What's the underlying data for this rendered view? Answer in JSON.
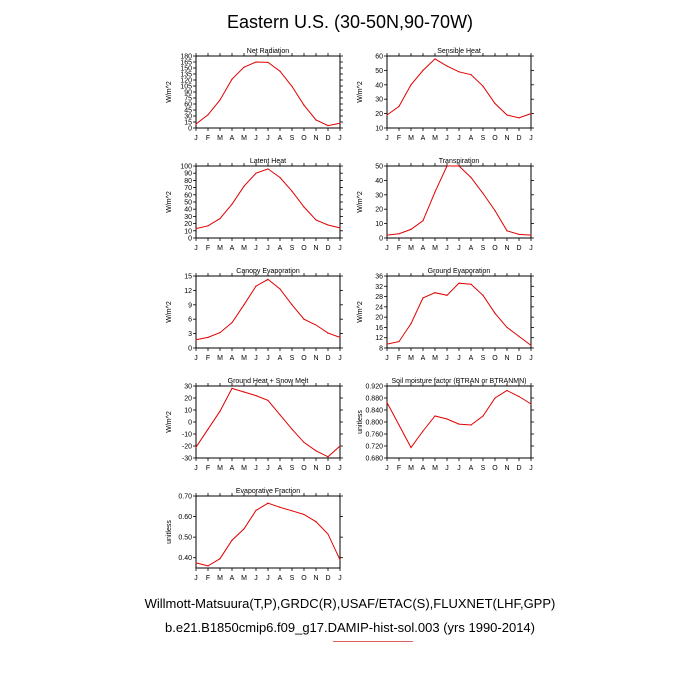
{
  "title": "Eastern U.S. (30-50N,90-70W)",
  "footer": {
    "line1": "Willmott-Matsuura(T,P),GRDC(R),USAF/ETAC(S),FLUXNET(LHF,GPP)",
    "line2": "b.e21.B1850cmip6.f09_g17.DAMIP-hist-sol.003 (yrs 1990-2014)"
  },
  "colors": {
    "series": "#e00000",
    "axis": "#000000"
  },
  "chart_data": [
    {
      "type": "line",
      "title": "Net Radiation",
      "ylabel": "W/m^2",
      "x": [
        "J",
        "F",
        "M",
        "A",
        "M",
        "J",
        "J",
        "A",
        "S",
        "O",
        "N",
        "D",
        "J"
      ],
      "y": [
        10,
        33,
        70,
        122,
        152,
        165,
        164,
        142,
        104,
        57,
        20,
        6,
        12
      ],
      "ylim": [
        0,
        180
      ],
      "yticks": [
        "0",
        "15",
        "30",
        "45",
        "60",
        "75",
        "90",
        "105",
        "120",
        "135",
        "150",
        "165",
        "180"
      ]
    },
    {
      "type": "line",
      "title": "Sensible Heat",
      "ylabel": "W/m^2",
      "x": [
        "J",
        "F",
        "M",
        "A",
        "M",
        "J",
        "J",
        "A",
        "S",
        "O",
        "N",
        "D",
        "J"
      ],
      "y": [
        19,
        25,
        40,
        50,
        58,
        53,
        49,
        47,
        39,
        27,
        19,
        17,
        20
      ],
      "ylim": [
        10,
        60
      ],
      "yticks": [
        "10",
        "20",
        "30",
        "40",
        "50",
        "60"
      ]
    },
    {
      "type": "line",
      "title": "Latent Heat",
      "ylabel": "W/m^2",
      "x": [
        "J",
        "F",
        "M",
        "A",
        "M",
        "J",
        "J",
        "A",
        "S",
        "O",
        "N",
        "D",
        "J"
      ],
      "y": [
        13,
        17,
        27,
        47,
        72,
        90,
        96,
        84,
        65,
        43,
        25,
        18,
        14
      ],
      "ylim": [
        0,
        100
      ],
      "yticks": [
        "0",
        "10",
        "20",
        "30",
        "40",
        "50",
        "60",
        "70",
        "80",
        "90",
        "100"
      ]
    },
    {
      "type": "line",
      "title": "Transpiration",
      "ylabel": "W/m^2",
      "x": [
        "J",
        "F",
        "M",
        "A",
        "M",
        "J",
        "J",
        "A",
        "S",
        "O",
        "N",
        "D",
        "J"
      ],
      "y": [
        2,
        3,
        6,
        12,
        32,
        50,
        50,
        42,
        31,
        19,
        5,
        2.5,
        2
      ],
      "ylim": [
        0,
        50
      ],
      "yticks": [
        "0",
        "10",
        "20",
        "30",
        "40",
        "50"
      ]
    },
    {
      "type": "line",
      "title": "Canopy Evaporation",
      "ylabel": "W/m^2",
      "x": [
        "J",
        "F",
        "M",
        "A",
        "M",
        "J",
        "J",
        "A",
        "S",
        "O",
        "N",
        "D",
        "J"
      ],
      "y": [
        1.7,
        2.2,
        3.2,
        5.3,
        9.0,
        12.9,
        14.3,
        12.3,
        9.0,
        6.0,
        4.8,
        3.1,
        2.2
      ],
      "ylim": [
        0,
        15
      ],
      "yticks": [
        "0",
        "3",
        "6",
        "9",
        "12",
        "15"
      ]
    },
    {
      "type": "line",
      "title": "Ground Evaporation",
      "ylabel": "W/m^2",
      "x": [
        "J",
        "F",
        "M",
        "A",
        "M",
        "J",
        "J",
        "A",
        "S",
        "O",
        "N",
        "D",
        "J"
      ],
      "y": [
        9.5,
        10.5,
        17.5,
        27.5,
        29.5,
        28.5,
        33.2,
        32.8,
        28.5,
        21.5,
        16.0,
        12.5,
        9.0
      ],
      "ylim": [
        8,
        36
      ],
      "yticks": [
        "8",
        "12",
        "16",
        "20",
        "24",
        "28",
        "32",
        "36"
      ]
    },
    {
      "type": "line",
      "title": "Ground Heat + Snow Melt",
      "ylabel": "W/m^2",
      "x": [
        "J",
        "F",
        "M",
        "A",
        "M",
        "J",
        "J",
        "A",
        "S",
        "O",
        "N",
        "D",
        "J"
      ],
      "y": [
        -21,
        -6,
        9,
        28,
        25,
        22,
        18,
        6,
        -6,
        -17,
        -24,
        -29,
        -20
      ],
      "ylim": [
        -30,
        30
      ],
      "yticks": [
        "-30",
        "-20",
        "-10",
        "0",
        "10",
        "20",
        "30"
      ]
    },
    {
      "type": "line",
      "title": "Soil moisture factor (BTRAN or BTRANMN)",
      "ylabel": "unitless",
      "x": [
        "J",
        "F",
        "M",
        "A",
        "M",
        "J",
        "J",
        "A",
        "S",
        "O",
        "N",
        "D",
        "J"
      ],
      "y": [
        0.865,
        0.79,
        0.715,
        0.77,
        0.82,
        0.81,
        0.793,
        0.79,
        0.82,
        0.88,
        0.905,
        0.885,
        0.86
      ],
      "ylim": [
        0.68,
        0.92
      ],
      "yticks": [
        "0.680",
        "0.720",
        "0.760",
        "0.800",
        "0.840",
        "0.880",
        "0.920"
      ]
    },
    {
      "type": "line",
      "title": "Evaporative Fraction",
      "ylabel": "unitless",
      "x": [
        "J",
        "F",
        "M",
        "A",
        "M",
        "J",
        "J",
        "A",
        "S",
        "O",
        "N",
        "D",
        "J"
      ],
      "y": [
        0.375,
        0.36,
        0.395,
        0.485,
        0.54,
        0.63,
        0.665,
        0.645,
        0.628,
        0.61,
        0.575,
        0.515,
        0.39
      ],
      "ylim": [
        0.35,
        0.7
      ],
      "yticks": [
        "0.40",
        "0.50",
        "0.60",
        "0.70"
      ],
      "ytick_values": [
        0.4,
        0.5,
        0.6,
        0.7
      ]
    }
  ]
}
